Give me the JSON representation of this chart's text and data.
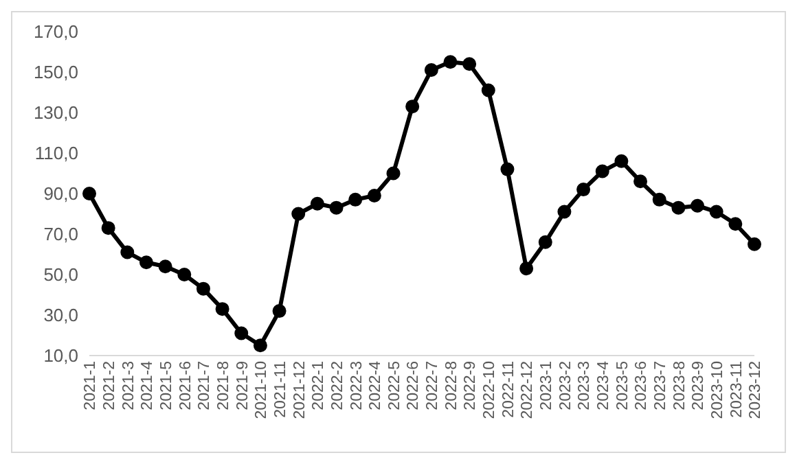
{
  "chart_data": {
    "type": "line",
    "categories": [
      "2021-1",
      "2021-2",
      "2021-3",
      "2021-4",
      "2021-5",
      "2021-6",
      "2021-7",
      "2021-8",
      "2021-9",
      "2021-10",
      "2021-11",
      "2021-12",
      "2022-1",
      "2022-2",
      "2022-3",
      "2022-4",
      "2022-5",
      "2022-6",
      "2022-7",
      "2022-8",
      "2022-9",
      "2022-10",
      "2022-11",
      "2022-12",
      "2023-1",
      "2023-2",
      "2023-3",
      "2023-4",
      "2023-5",
      "2023-6",
      "2023-7",
      "2023-8",
      "2023-9",
      "2023-10",
      "2023-11",
      "2023-12"
    ],
    "series": [
      {
        "color": "#000000",
        "values": [
          90,
          73,
          61,
          56,
          54,
          50,
          43,
          33,
          21,
          15,
          32,
          80,
          85,
          83,
          87,
          89,
          100,
          133,
          151,
          155,
          154,
          141,
          102,
          53,
          66,
          81,
          92,
          101,
          106,
          96,
          87,
          83,
          84,
          81,
          75,
          65
        ]
      }
    ],
    "ylim": [
      10,
      170
    ],
    "yticks": [
      {
        "value": 10,
        "label": "10,0"
      },
      {
        "value": 30,
        "label": "30,0"
      },
      {
        "value": 50,
        "label": "50,0"
      },
      {
        "value": 70,
        "label": "70,0"
      },
      {
        "value": 90,
        "label": "90,0"
      },
      {
        "value": 110,
        "label": "110,0"
      },
      {
        "value": 130,
        "label": "130,0"
      },
      {
        "value": 150,
        "label": "150,0"
      },
      {
        "value": 170,
        "label": "170,0"
      }
    ],
    "grid": false,
    "marker": "circle",
    "line_style": "solid"
  }
}
